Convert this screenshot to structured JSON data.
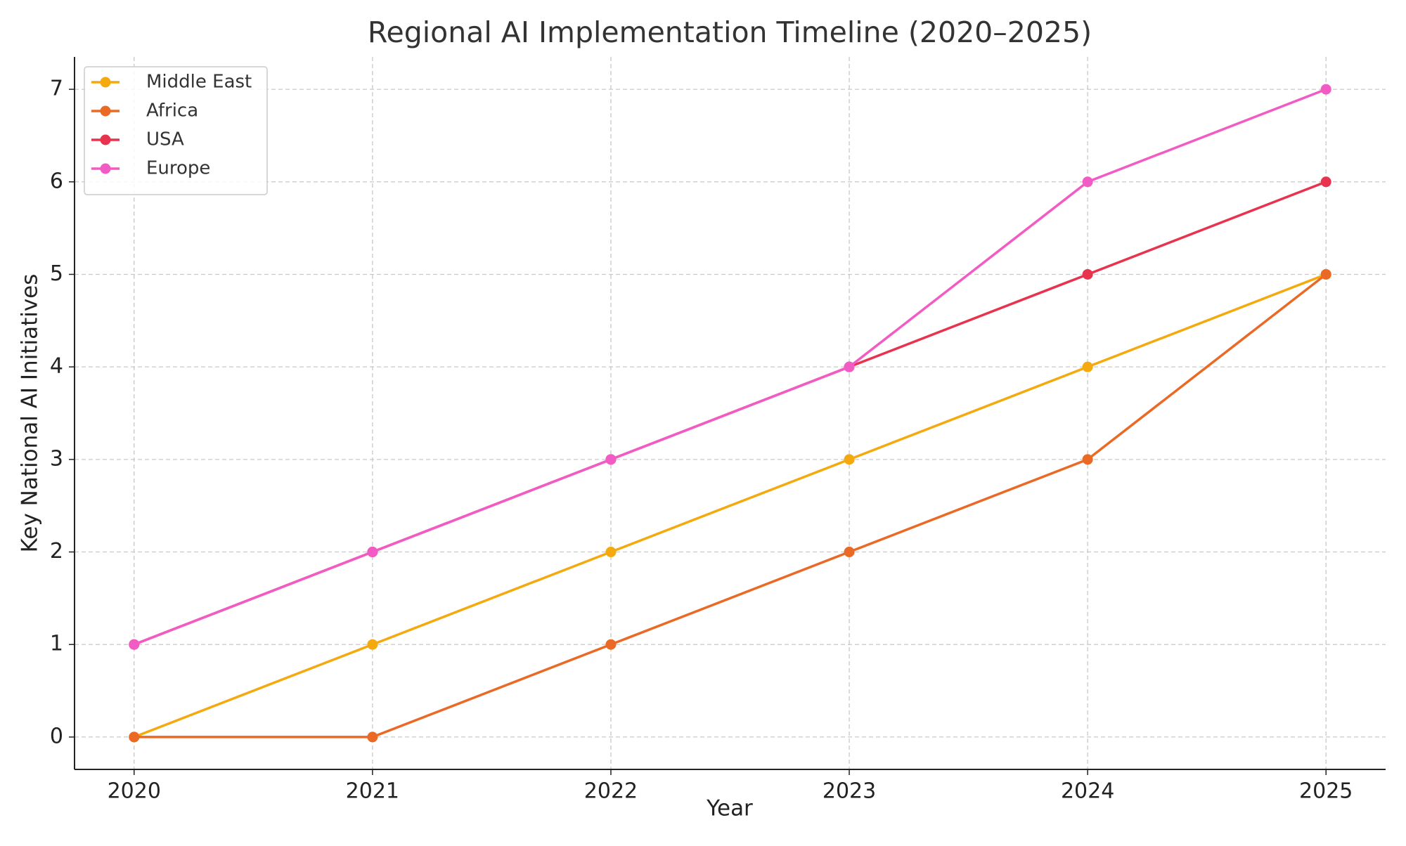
{
  "chart_data": {
    "type": "line",
    "title": "Regional AI Implementation Timeline (2020–2025)",
    "x_label": "Year",
    "y_label": "Key National AI Initiatives",
    "x": [
      2020,
      2021,
      2022,
      2023,
      2024,
      2025
    ],
    "series": [
      {
        "name": "Middle East",
        "color": "#f4aa0f",
        "values": [
          0,
          1,
          2,
          3,
          4,
          5
        ]
      },
      {
        "name": "Africa",
        "color": "#ea6a25",
        "values": [
          0,
          0,
          1,
          2,
          3,
          5
        ]
      },
      {
        "name": "USA",
        "color": "#e8334f",
        "values": [
          1,
          2,
          3,
          4,
          5,
          6
        ]
      },
      {
        "name": "Europe",
        "color": "#f25bc4",
        "values": [
          1,
          2,
          3,
          4,
          6,
          7
        ]
      }
    ],
    "xlim": [
      2019.75,
      2025.25
    ],
    "xticks": [
      2020,
      2021,
      2022,
      2023,
      2024,
      2025
    ],
    "ylim": [
      -0.35,
      7.35
    ],
    "yticks": [
      0,
      1,
      2,
      3,
      4,
      5,
      6,
      7
    ],
    "grid": true,
    "legend": "upper left"
  }
}
